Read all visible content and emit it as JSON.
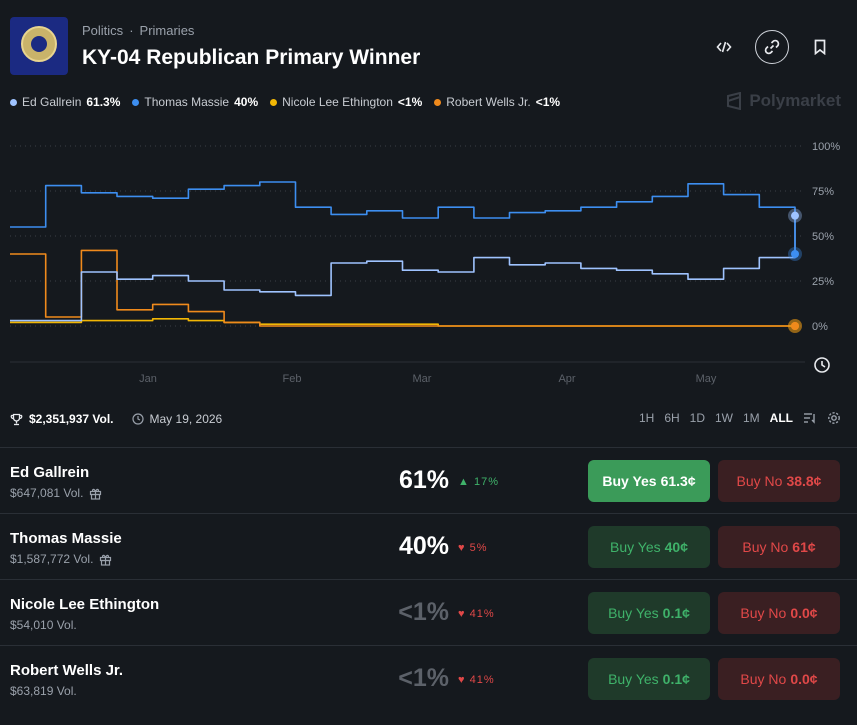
{
  "header": {
    "breadcrumb": [
      "Politics",
      "Primaries"
    ],
    "title": "KY-04 Republican Primary Winner"
  },
  "brand": "Polymarket",
  "colors": {
    "ed": "#9fc3ff",
    "thomas": "#3d8ef0",
    "nicole": "#f2b705",
    "robert": "#f08a1c"
  },
  "legend": [
    {
      "name": "Ed Gallrein",
      "value": "61.3%",
      "color": "#9fc3ff"
    },
    {
      "name": "Thomas Massie",
      "value": "40%",
      "color": "#3d8ef0"
    },
    {
      "name": "Nicole Lee Ethington",
      "value": "<1%",
      "color": "#f2b705"
    },
    {
      "name": "Robert Wells Jr.",
      "value": "<1%",
      "color": "#f08a1c"
    }
  ],
  "chart_data": {
    "type": "line",
    "ylim": [
      0,
      100
    ],
    "y_ticks": [
      "100%",
      "75%",
      "50%",
      "25%",
      "0%"
    ],
    "x_ticks": [
      "Jan",
      "Feb",
      "Mar",
      "Apr",
      "May"
    ],
    "grid": true,
    "series": [
      {
        "name": "Thomas Massie",
        "color": "#3d8ef0",
        "values": [
          55,
          78,
          74,
          72,
          71,
          76,
          78,
          80,
          66,
          62,
          64,
          60,
          66,
          60,
          63,
          64,
          66,
          69,
          72,
          79,
          73,
          66,
          40
        ]
      },
      {
        "name": "Ed Gallrein",
        "color": "#9fc3ff",
        "values": [
          3,
          3,
          30,
          26,
          28,
          25,
          20,
          19,
          17,
          35,
          36,
          31,
          30,
          38,
          34,
          35,
          32,
          31,
          29,
          26,
          32,
          38,
          61.3
        ]
      },
      {
        "name": "Robert Wells Jr.",
        "color": "#f08a1c",
        "values": [
          40,
          5,
          42,
          9,
          12,
          8,
          2,
          0,
          0,
          0,
          0,
          0,
          0,
          0,
          0,
          0,
          0,
          0,
          0,
          0,
          0,
          0,
          0
        ]
      },
      {
        "name": "Nicole Lee Ethington",
        "color": "#f2b705",
        "values": [
          2,
          2,
          3,
          3,
          4,
          3,
          2,
          1,
          1,
          1,
          1,
          1,
          0,
          0,
          0,
          0,
          0,
          0,
          0,
          0,
          0,
          0,
          0
        ]
      }
    ]
  },
  "stats": {
    "volume": "$2,351,937 Vol.",
    "date": "May 19, 2026"
  },
  "ranges": [
    "1H",
    "6H",
    "1D",
    "1W",
    "1M",
    "ALL"
  ],
  "active_range": "ALL",
  "candidates": [
    {
      "name": "Ed Gallrein",
      "volume": "$647,081 Vol.",
      "gift": true,
      "pct": "61%",
      "pct_dim": false,
      "change": "17%",
      "dir": "up",
      "yes_label": "Buy Yes",
      "yes_price": "61.3¢",
      "no_label": "Buy No",
      "no_price": "38.8¢",
      "yes_solid": true
    },
    {
      "name": "Thomas Massie",
      "volume": "$1,587,772 Vol.",
      "gift": true,
      "pct": "40%",
      "pct_dim": false,
      "change": "5%",
      "dir": "down",
      "yes_label": "Buy Yes",
      "yes_price": "40¢",
      "no_label": "Buy No",
      "no_price": "61¢",
      "yes_solid": false
    },
    {
      "name": "Nicole Lee Ethington",
      "volume": "$54,010 Vol.",
      "gift": false,
      "pct": "<1%",
      "pct_dim": true,
      "change": "41%",
      "dir": "down",
      "yes_label": "Buy Yes",
      "yes_price": "0.1¢",
      "no_label": "Buy No",
      "no_price": "0.0¢",
      "yes_solid": false
    },
    {
      "name": "Robert Wells Jr.",
      "volume": "$63,819 Vol.",
      "gift": false,
      "pct": "<1%",
      "pct_dim": true,
      "change": "41%",
      "dir": "down",
      "yes_label": "Buy Yes",
      "yes_price": "0.1¢",
      "no_label": "Buy No",
      "no_price": "0.0¢",
      "yes_solid": false
    }
  ]
}
